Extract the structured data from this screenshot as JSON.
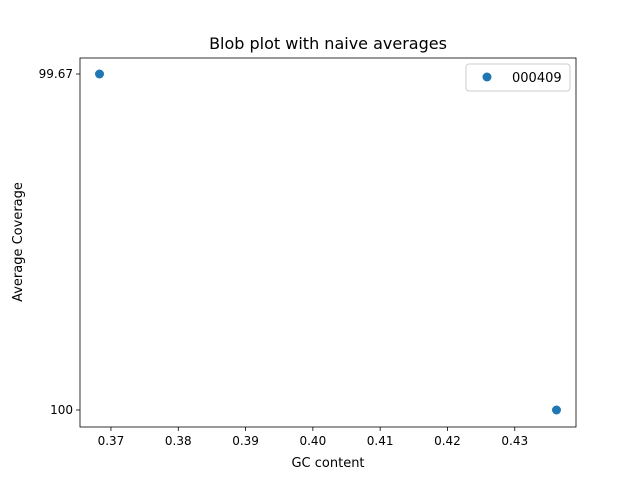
{
  "chart_data": {
    "type": "scatter",
    "title": "Blob plot with naive averages",
    "xlabel": "GC content",
    "ylabel": "Average Coverage",
    "xlim": [
      0.3654,
      0.4391
    ],
    "x_ticks": [
      "0.37",
      "0.38",
      "0.39",
      "0.40",
      "0.41",
      "0.42",
      "0.43"
    ],
    "y_ticks": [
      "99.67",
      "100"
    ],
    "y_axis_kind": "categorical",
    "grid": false,
    "legend_position": "top-right",
    "series": [
      {
        "name": "000409",
        "color": "#1f77b4",
        "marker": "circle",
        "points": [
          {
            "x": 0.3683,
            "y": "99.67"
          },
          {
            "x": 0.4362,
            "y": "100"
          }
        ]
      }
    ]
  }
}
